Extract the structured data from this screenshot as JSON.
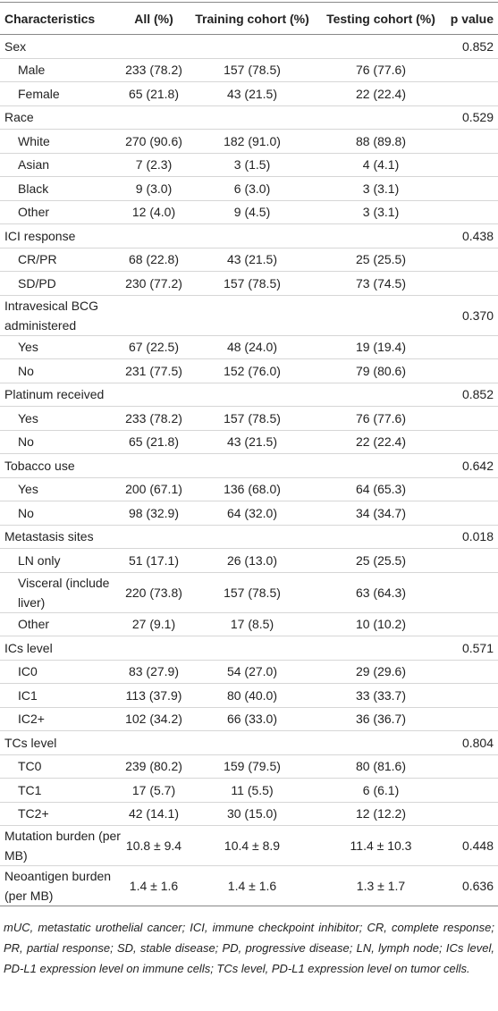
{
  "table": {
    "header": [
      "Characteristics",
      "All (%)",
      "Training cohort (%)",
      "Testing cohort (%)",
      "p value"
    ],
    "groups": [
      {
        "label": "Sex",
        "p": "0.852",
        "items": [
          {
            "label": "Male",
            "values": [
              "233 (78.2)",
              "157 (78.5)",
              "76 (77.6)"
            ]
          },
          {
            "label": "Female",
            "values": [
              "65 (21.8)",
              "43 (21.5)",
              "22 (22.4)"
            ]
          }
        ]
      },
      {
        "label": "Race",
        "p": "0.529",
        "items": [
          {
            "label": "White",
            "values": [
              "270 (90.6)",
              "182 (91.0)",
              "88 (89.8)"
            ]
          },
          {
            "label": "Asian",
            "values": [
              "7 (2.3)",
              "3 (1.5)",
              "4 (4.1)"
            ]
          },
          {
            "label": "Black",
            "values": [
              "9 (3.0)",
              "6 (3.0)",
              "3 (3.1)"
            ]
          },
          {
            "label": "Other",
            "values": [
              "12 (4.0)",
              "9 (4.5)",
              "3 (3.1)"
            ]
          }
        ]
      },
      {
        "label": "ICI response",
        "p": "0.438",
        "items": [
          {
            "label": "CR/PR",
            "values": [
              "68 (22.8)",
              "43 (21.5)",
              "25 (25.5)"
            ]
          },
          {
            "label": "SD/PD",
            "values": [
              "230 (77.2)",
              "157 (78.5)",
              "73 (74.5)"
            ]
          }
        ]
      },
      {
        "label": "Intravesical BCG administered",
        "p": "0.370",
        "items": [
          {
            "label": "Yes",
            "values": [
              "67 (22.5)",
              "48 (24.0)",
              "19 (19.4)"
            ]
          },
          {
            "label": "No",
            "values": [
              "231 (77.5)",
              "152 (76.0)",
              "79 (80.6)"
            ]
          }
        ]
      },
      {
        "label": "Platinum received",
        "p": "0.852",
        "items": [
          {
            "label": "Yes",
            "values": [
              "233 (78.2)",
              "157 (78.5)",
              "76 (77.6)"
            ]
          },
          {
            "label": "No",
            "values": [
              "65 (21.8)",
              "43 (21.5)",
              "22 (22.4)"
            ]
          }
        ]
      },
      {
        "label": "Tobacco use",
        "p": "0.642",
        "items": [
          {
            "label": "Yes",
            "values": [
              "200 (67.1)",
              "136 (68.0)",
              "64 (65.3)"
            ]
          },
          {
            "label": "No",
            "values": [
              "98 (32.9)",
              "64 (32.0)",
              "34 (34.7)"
            ]
          }
        ]
      },
      {
        "label": "Metastasis sites",
        "p": "0.018",
        "items": [
          {
            "label": "LN only",
            "values": [
              "51 (17.1)",
              "26 (13.0)",
              "25 (25.5)"
            ]
          },
          {
            "label": "Visceral (include liver)",
            "values": [
              "220 (73.8)",
              "157 (78.5)",
              "63 (64.3)"
            ]
          },
          {
            "label": "Other",
            "values": [
              "27 (9.1)",
              "17 (8.5)",
              "10 (10.2)"
            ]
          }
        ]
      },
      {
        "label": "ICs level",
        "p": "0.571",
        "items": [
          {
            "label": "IC0",
            "values": [
              "83 (27.9)",
              "54 (27.0)",
              "29 (29.6)"
            ]
          },
          {
            "label": "IC1",
            "values": [
              "113 (37.9)",
              "80 (40.0)",
              "33 (33.7)"
            ]
          },
          {
            "label": "IC2+",
            "values": [
              "102 (34.2)",
              "66 (33.0)",
              "36 (36.7)"
            ]
          }
        ]
      },
      {
        "label": "TCs level",
        "p": "0.804",
        "items": [
          {
            "label": "TC0",
            "values": [
              "239 (80.2)",
              "159 (79.5)",
              "80 (81.6)"
            ]
          },
          {
            "label": "TC1",
            "values": [
              "17 (5.7)",
              "11 (5.5)",
              "6 (6.1)"
            ]
          },
          {
            "label": "TC2+",
            "values": [
              "42 (14.1)",
              "30 (15.0)",
              "12 (12.2)"
            ]
          }
        ]
      },
      {
        "label": "Mutation burden (per MB)",
        "p": "0.448",
        "values": [
          "10.8 ± 9.4",
          "10.4 ± 8.9",
          "11.4 ± 10.3"
        ]
      },
      {
        "label": "Neoantigen burden (per MB)",
        "p": "0.636",
        "values": [
          "1.4 ± 1.6",
          "1.4 ± 1.6",
          "1.3 ± 1.7"
        ]
      }
    ]
  },
  "footnote": "mUC, metastatic urothelial cancer; ICI, immune checkpoint inhibitor; CR, complete response; PR, partial response; SD, stable disease; PD, progressive disease; LN, lymph node; ICs level, PD-L1 expression level on immune cells; TCs level, PD-L1 expression level on tumor cells."
}
